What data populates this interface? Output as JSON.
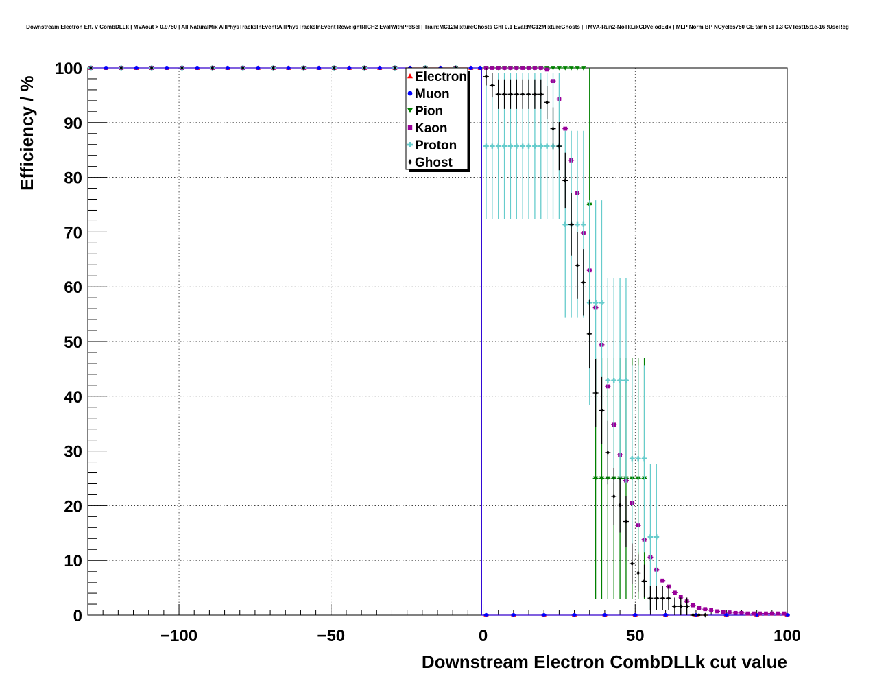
{
  "chart_data": {
    "type": "scatter",
    "title": "Downstream Electron Eff. V CombDLLk | MVAout > 0.9750 | All NaturalMix AllPhysTracksInEvent:AllPhysTracksInEvent ReweightRICH2 EvalWithPreSel | Train:MC12MixtureGhosts GhF0.1 Eval:MC12MixtureGhosts | TMVA-Run2-NoTkLikCDVelodEdx | MLP Norm BP NCycles750 CE tanh SF1.3 CVTest15:1e-16 !UseReg",
    "xlabel": "Downstream Electron CombDLLk cut value",
    "ylabel": "Efficiency / %",
    "xlim": [
      -130,
      100
    ],
    "ylim": [
      0,
      100
    ],
    "x_ticks": [
      -100,
      -50,
      0,
      50,
      100
    ],
    "x_tick_labels": [
      "−100",
      "−50",
      "0",
      "50",
      "100"
    ],
    "y_ticks": [
      0,
      10,
      20,
      30,
      40,
      50,
      60,
      70,
      80,
      90,
      100
    ],
    "y_tick_labels": [
      "0",
      "10",
      "20",
      "30",
      "40",
      "50",
      "60",
      "70",
      "80",
      "90",
      "100"
    ],
    "grid": true,
    "legend_position": "top-center",
    "series": [
      {
        "name": "Electron",
        "color": "#ff0000",
        "marker": "triangle-up",
        "points": [
          [
            -129,
            100
          ],
          [
            -124,
            100
          ],
          [
            -119,
            100
          ],
          [
            -114,
            100
          ],
          [
            -109,
            100
          ],
          [
            -104,
            100
          ],
          [
            -99,
            100
          ],
          [
            -94,
            100
          ],
          [
            -89,
            100
          ],
          [
            -84,
            100
          ],
          [
            -79,
            100
          ],
          [
            -74,
            100
          ],
          [
            -69,
            100
          ],
          [
            -64,
            100
          ],
          [
            -59,
            100
          ],
          [
            -54,
            100
          ],
          [
            -49,
            100
          ],
          [
            -44,
            100
          ],
          [
            -39,
            100
          ],
          [
            -34,
            100
          ],
          [
            -29,
            100
          ],
          [
            -24,
            100
          ],
          [
            -19,
            100
          ],
          [
            -14,
            100
          ],
          [
            -9,
            100
          ],
          [
            -4,
            100
          ],
          [
            -1,
            100
          ],
          [
            1,
            0
          ],
          [
            10,
            0
          ],
          [
            20,
            0
          ],
          [
            30,
            0
          ],
          [
            40,
            0
          ],
          [
            50,
            0
          ],
          [
            60,
            0
          ],
          [
            70,
            0
          ],
          [
            80,
            0
          ],
          [
            90,
            0
          ],
          [
            100,
            0
          ]
        ]
      },
      {
        "name": "Muon",
        "color": "#0000ff",
        "marker": "circle",
        "points": [
          [
            -129,
            100
          ],
          [
            -124,
            100
          ],
          [
            -119,
            100
          ],
          [
            -114,
            100
          ],
          [
            -109,
            100
          ],
          [
            -104,
            100
          ],
          [
            -99,
            100
          ],
          [
            -94,
            100
          ],
          [
            -89,
            100
          ],
          [
            -84,
            100
          ],
          [
            -79,
            100
          ],
          [
            -74,
            100
          ],
          [
            -69,
            100
          ],
          [
            -64,
            100
          ],
          [
            -59,
            100
          ],
          [
            -54,
            100
          ],
          [
            -49,
            100
          ],
          [
            -44,
            100
          ],
          [
            -39,
            100
          ],
          [
            -34,
            100
          ],
          [
            -29,
            100
          ],
          [
            -24,
            100
          ],
          [
            -19,
            100
          ],
          [
            -14,
            100
          ],
          [
            -9,
            100
          ],
          [
            -4,
            100
          ],
          [
            -1,
            100
          ],
          [
            1,
            0
          ],
          [
            10,
            0
          ],
          [
            20,
            0
          ],
          [
            30,
            0
          ],
          [
            40,
            0
          ],
          [
            50,
            0
          ],
          [
            60,
            0
          ],
          [
            70,
            0
          ],
          [
            80,
            0
          ],
          [
            90,
            0
          ],
          [
            100,
            0
          ]
        ]
      },
      {
        "name": "Pion",
        "color": "#008000",
        "marker": "triangle-down",
        "points": [
          [
            -129,
            100
          ],
          [
            -119,
            100
          ],
          [
            -109,
            100
          ],
          [
            -99,
            100
          ],
          [
            -89,
            100
          ],
          [
            -79,
            100
          ],
          [
            -69,
            100
          ],
          [
            -59,
            100
          ],
          [
            -49,
            100
          ],
          [
            -39,
            100
          ],
          [
            -29,
            100
          ],
          [
            -19,
            100
          ],
          [
            -9,
            100
          ],
          [
            1,
            100
          ],
          [
            3,
            100
          ],
          [
            5,
            100
          ],
          [
            7,
            100
          ],
          [
            9,
            100
          ],
          [
            11,
            100
          ],
          [
            13,
            100
          ],
          [
            15,
            100
          ],
          [
            17,
            100
          ],
          [
            19,
            100
          ],
          [
            21,
            100
          ],
          [
            23,
            100
          ],
          [
            25,
            100
          ],
          [
            27,
            100
          ],
          [
            29,
            100
          ],
          [
            31,
            100
          ],
          [
            33,
            100
          ],
          [
            35,
            75
          ],
          [
            37,
            25
          ],
          [
            39,
            25
          ],
          [
            41,
            25
          ],
          [
            43,
            25
          ],
          [
            45,
            25
          ],
          [
            47,
            25
          ],
          [
            49,
            25
          ],
          [
            51,
            25
          ],
          [
            53,
            25
          ]
        ],
        "errors": [
          0,
          0,
          0,
          0,
          0,
          0,
          0,
          0,
          0,
          0,
          0,
          0,
          0,
          0,
          0,
          0,
          0,
          0,
          0,
          0,
          0,
          0,
          0,
          0,
          0,
          0,
          0,
          0,
          0,
          0,
          25,
          22,
          22,
          22,
          22,
          22,
          22,
          22,
          22,
          22
        ]
      },
      {
        "name": "Kaon",
        "color": "#990099",
        "marker": "square",
        "points": [
          [
            -129,
            100
          ],
          [
            -119,
            100
          ],
          [
            -109,
            100
          ],
          [
            -99,
            100
          ],
          [
            -89,
            100
          ],
          [
            -79,
            100
          ],
          [
            -69,
            100
          ],
          [
            -59,
            100
          ],
          [
            -49,
            100
          ],
          [
            -39,
            100
          ],
          [
            -29,
            100
          ],
          [
            -19,
            100
          ],
          [
            -9,
            100
          ],
          [
            1,
            100
          ],
          [
            3,
            100
          ],
          [
            5,
            100
          ],
          [
            7,
            100
          ],
          [
            9,
            100
          ],
          [
            11,
            100
          ],
          [
            13,
            100
          ],
          [
            15,
            100
          ],
          [
            17,
            100
          ],
          [
            19,
            100
          ],
          [
            21,
            99.7
          ],
          [
            23,
            97.6
          ],
          [
            25,
            94.3
          ],
          [
            27,
            88.9
          ],
          [
            29,
            83.1
          ],
          [
            31,
            77.1
          ],
          [
            33,
            69.8
          ],
          [
            35,
            63
          ],
          [
            37,
            56.2
          ],
          [
            39,
            49.4
          ],
          [
            41,
            41.8
          ],
          [
            43,
            34.8
          ],
          [
            45,
            29.3
          ],
          [
            47,
            24.6
          ],
          [
            49,
            20.5
          ],
          [
            51,
            16.4
          ],
          [
            53,
            13.8
          ],
          [
            55,
            10.6
          ],
          [
            57,
            8.3
          ],
          [
            59,
            6.3
          ],
          [
            61,
            5.2
          ],
          [
            63,
            4.1
          ],
          [
            65,
            3.3
          ],
          [
            67,
            2.5
          ],
          [
            69,
            1.8
          ],
          [
            71,
            1.3
          ],
          [
            73,
            1.1
          ],
          [
            75,
            0.9
          ],
          [
            77,
            0.7
          ],
          [
            79,
            0.6
          ],
          [
            81,
            0.5
          ],
          [
            83,
            0.4
          ],
          [
            85,
            0.4
          ],
          [
            87,
            0.3
          ],
          [
            89,
            0.3
          ],
          [
            91,
            0.3
          ],
          [
            93,
            0.3
          ],
          [
            95,
            0.3
          ],
          [
            97,
            0.3
          ],
          [
            99,
            0.3
          ]
        ]
      },
      {
        "name": "Proton",
        "color": "#66cccc",
        "marker": "cross",
        "points": [
          [
            -129,
            100
          ],
          [
            -119,
            100
          ],
          [
            -109,
            100
          ],
          [
            -99,
            100
          ],
          [
            -89,
            100
          ],
          [
            -79,
            100
          ],
          [
            -69,
            100
          ],
          [
            -59,
            100
          ],
          [
            -49,
            100
          ],
          [
            -39,
            100
          ],
          [
            -29,
            100
          ],
          [
            -19,
            100
          ],
          [
            -9,
            100
          ],
          [
            1,
            85.7
          ],
          [
            3,
            85.7
          ],
          [
            5,
            85.7
          ],
          [
            7,
            85.7
          ],
          [
            9,
            85.7
          ],
          [
            11,
            85.7
          ],
          [
            13,
            85.7
          ],
          [
            15,
            85.7
          ],
          [
            17,
            85.7
          ],
          [
            19,
            85.7
          ],
          [
            21,
            85.7
          ],
          [
            23,
            85.7
          ],
          [
            25,
            85.7
          ],
          [
            27,
            71.4
          ],
          [
            29,
            71.4
          ],
          [
            31,
            71.4
          ],
          [
            33,
            71.4
          ],
          [
            35,
            57.1
          ],
          [
            37,
            57.1
          ],
          [
            39,
            57.1
          ],
          [
            41,
            42.9
          ],
          [
            43,
            42.9
          ],
          [
            45,
            42.9
          ],
          [
            47,
            42.9
          ],
          [
            49,
            28.6
          ],
          [
            51,
            28.6
          ],
          [
            53,
            28.6
          ],
          [
            55,
            14.3
          ],
          [
            57,
            14.3
          ]
        ],
        "errors": [
          0,
          0,
          0,
          0,
          0,
          0,
          0,
          0,
          0,
          0,
          0,
          0,
          0,
          13.4,
          13.4,
          13.4,
          13.4,
          13.4,
          13.4,
          13.4,
          13.4,
          13.4,
          13.4,
          13.4,
          13.4,
          13.4,
          17.1,
          17.1,
          17.1,
          17.1,
          18.7,
          18.7,
          18.7,
          18.7,
          18.7,
          18.7,
          18.7,
          17.1,
          17.1,
          17.1,
          13.4,
          13.4
        ]
      },
      {
        "name": "Ghost",
        "color": "#000000",
        "marker": "diamond",
        "points": [
          [
            -129,
            100
          ],
          [
            -119,
            100
          ],
          [
            -109,
            100
          ],
          [
            -99,
            100
          ],
          [
            -89,
            100
          ],
          [
            -79,
            100
          ],
          [
            -69,
            100
          ],
          [
            -59,
            100
          ],
          [
            -49,
            100
          ],
          [
            -39,
            100
          ],
          [
            -29,
            100
          ],
          [
            -19,
            100
          ],
          [
            -9,
            100
          ],
          [
            1,
            98.4
          ],
          [
            3,
            96.8
          ],
          [
            5,
            95.2
          ],
          [
            7,
            95.2
          ],
          [
            9,
            95.2
          ],
          [
            11,
            95.2
          ],
          [
            13,
            95.2
          ],
          [
            15,
            95.2
          ],
          [
            17,
            95.2
          ],
          [
            19,
            95.2
          ],
          [
            21,
            93.7
          ],
          [
            23,
            88.9
          ],
          [
            25,
            85.7
          ],
          [
            27,
            79.4
          ],
          [
            29,
            71.4
          ],
          [
            31,
            63.9
          ],
          [
            33,
            60.8
          ],
          [
            35,
            51.4
          ],
          [
            37,
            40.6
          ],
          [
            39,
            37.4
          ],
          [
            41,
            29.7
          ],
          [
            43,
            21.7
          ],
          [
            45,
            20.1
          ],
          [
            47,
            17.1
          ],
          [
            49,
            9.4
          ],
          [
            51,
            7.7
          ],
          [
            53,
            6.2
          ],
          [
            55,
            3.1
          ],
          [
            57,
            3.1
          ],
          [
            59,
            3.1
          ],
          [
            61,
            3.1
          ],
          [
            63,
            1.6
          ],
          [
            65,
            1.6
          ],
          [
            67,
            1.6
          ],
          [
            69,
            0
          ],
          [
            71,
            0
          ],
          [
            73,
            0
          ]
        ],
        "errors": [
          0,
          0,
          0,
          0,
          0,
          0,
          0,
          0,
          0,
          0,
          0,
          0,
          0,
          1.6,
          2.2,
          2.7,
          2.7,
          2.7,
          2.7,
          2.7,
          2.7,
          2.7,
          2.7,
          3,
          3.9,
          4.4,
          5.1,
          5.7,
          6.1,
          6.1,
          6.3,
          6.2,
          6.1,
          5.8,
          5.2,
          5.0,
          4.7,
          3.7,
          3.4,
          3.0,
          2.2,
          2.2,
          2.2,
          2.2,
          1.6,
          1.6,
          1.6,
          0,
          0,
          0
        ]
      }
    ]
  }
}
